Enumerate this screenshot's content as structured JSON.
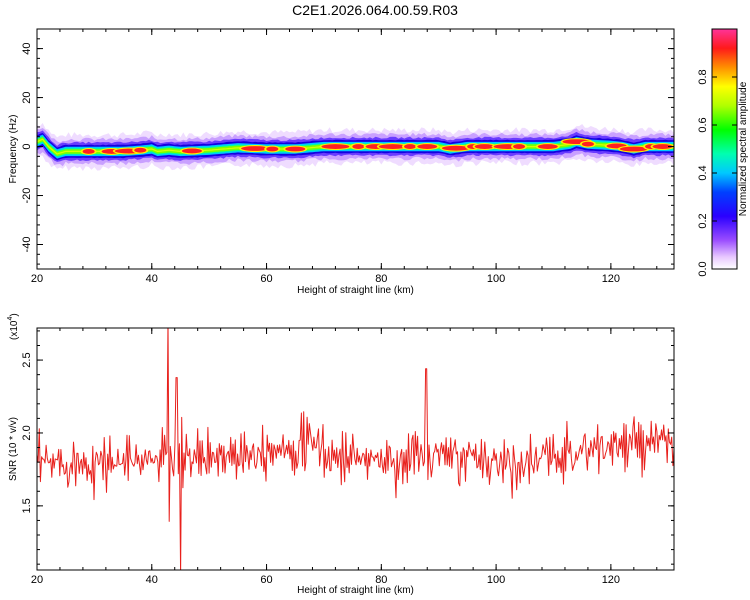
{
  "page": {
    "title": "C2E1.2026.064.00.59.R03"
  },
  "colors": {
    "snr_line": "#e8201c",
    "axis": "#000000"
  },
  "chart_data": [
    {
      "type": "heatmap",
      "xlabel": "Height of straight line (km)",
      "ylabel": "Frequency (Hz)",
      "xlim": [
        20,
        131
      ],
      "ylim": [
        -50,
        48
      ],
      "x_ticks": [
        "20",
        "40",
        "60",
        "80",
        "100",
        "120"
      ],
      "y_ticks": [
        "-40",
        "-20",
        "0",
        "20",
        "40"
      ],
      "colorbar": {
        "label": "Normalized spectral amplitude",
        "range": [
          0,
          1
        ],
        "ticks": [
          "0.0",
          "0.2",
          "0.4",
          "0.6",
          "0.8"
        ],
        "colormap": "rainbow"
      },
      "ridge_center_hz": [
        [
          20,
          2
        ],
        [
          21,
          3
        ],
        [
          22,
          0
        ],
        [
          23.5,
          -3
        ],
        [
          25,
          -2
        ],
        [
          30,
          -2
        ],
        [
          35,
          -2
        ],
        [
          38,
          -1.5
        ],
        [
          40,
          -1
        ],
        [
          41,
          -2
        ],
        [
          43,
          -1.5
        ],
        [
          45,
          -2
        ],
        [
          50,
          -1.5
        ],
        [
          55,
          -0.5
        ],
        [
          60,
          -1
        ],
        [
          65,
          -1
        ],
        [
          70,
          0
        ],
        [
          75,
          0
        ],
        [
          80,
          0
        ],
        [
          85,
          0
        ],
        [
          90,
          0
        ],
        [
          92,
          -1
        ],
        [
          95,
          0
        ],
        [
          100,
          0
        ],
        [
          105,
          0
        ],
        [
          110,
          0
        ],
        [
          113,
          1
        ],
        [
          114,
          2
        ],
        [
          116,
          1
        ],
        [
          120,
          0.5
        ],
        [
          122,
          0
        ],
        [
          124,
          -1
        ],
        [
          126,
          0
        ],
        [
          128,
          0
        ],
        [
          130,
          0
        ],
        [
          131,
          0
        ]
      ],
      "ridge_peaks_km": [
        29,
        33,
        36,
        38,
        47,
        58,
        61,
        65,
        72,
        76,
        79,
        82,
        85,
        88,
        93,
        96,
        98,
        102,
        104,
        109,
        114,
        116,
        121,
        124,
        127,
        129
      ]
    },
    {
      "type": "line",
      "xlabel": "Height of straight line (km)",
      "ylabel": "SNR (10 * v/v)",
      "y_multiplier": "(x10",
      "y_multiplier_exp": "4",
      "xlim": [
        20,
        131
      ],
      "ylim": [
        1.06,
        2.72
      ],
      "x_ticks": [
        "20",
        "40",
        "60",
        "80",
        "100",
        "120"
      ],
      "y_ticks": [
        "1.5",
        "2.0",
        "2.5"
      ],
      "series": [
        {
          "description_points": 560
        }
      ]
    }
  ]
}
